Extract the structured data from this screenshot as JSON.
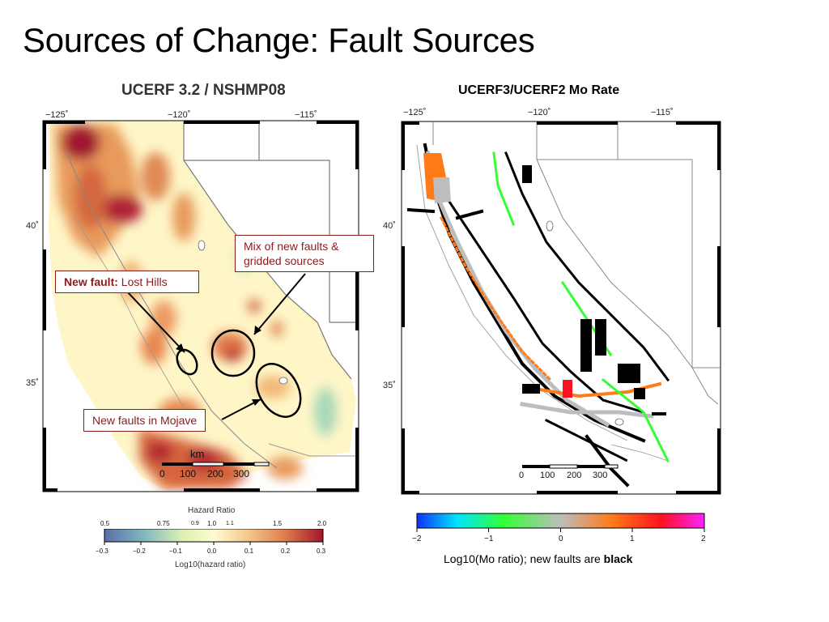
{
  "slide": {
    "title": "Sources of Change: Fault Sources"
  },
  "left_map": {
    "title": "UCERF 3.2 / NSHMP08",
    "longitude_labels": [
      "−125˚",
      "−120˚",
      "−115˚"
    ],
    "latitude_labels": [
      "40˚",
      "35˚"
    ],
    "scale_bar": {
      "unit": "km",
      "ticks": [
        "0",
        "100",
        "200",
        "300"
      ]
    },
    "callouts": {
      "mix": "Mix of new faults & gridded sources",
      "lost_hills_prefix": "New fault:",
      "lost_hills_name": "Lost Hills",
      "mojave": "New faults in Mojave"
    },
    "colorbar": {
      "title": "Hazard Ratio",
      "top_ticks": [
        "0.5",
        "0.75",
        "0.9",
        "1.0",
        "1.1",
        "1.5",
        "2.0"
      ],
      "bottom_ticks": [
        "−0.3",
        "−0.2",
        "−0.1",
        "0.0",
        "0.1",
        "0.2",
        "0.3"
      ],
      "bottom_label": "Log10(hazard ratio)",
      "colors": [
        "#5a6fa8",
        "#7fb7c0",
        "#d9efb0",
        "#fffbd0",
        "#f6c98d",
        "#e0804f",
        "#a4142a"
      ]
    }
  },
  "right_map": {
    "title": "UCERF3/UCERF2 Mo Rate",
    "longitude_labels": [
      "−125˚",
      "−120˚",
      "−115˚"
    ],
    "latitude_labels": [
      "40˚",
      "35˚"
    ],
    "scale_bar": {
      "ticks": [
        "0",
        "100",
        "200",
        "300"
      ]
    },
    "colorbar": {
      "ticks": [
        "−2",
        "−1",
        "0",
        "1",
        "2"
      ],
      "colors": [
        "#1030ff",
        "#00e5ff",
        "#33ff33",
        "#bdbdbd",
        "#ff7a18",
        "#ff1020",
        "#ff22ff"
      ]
    },
    "caption_prefix": "Log10(Mo ratio); new faults are",
    "caption_bold": "black"
  }
}
